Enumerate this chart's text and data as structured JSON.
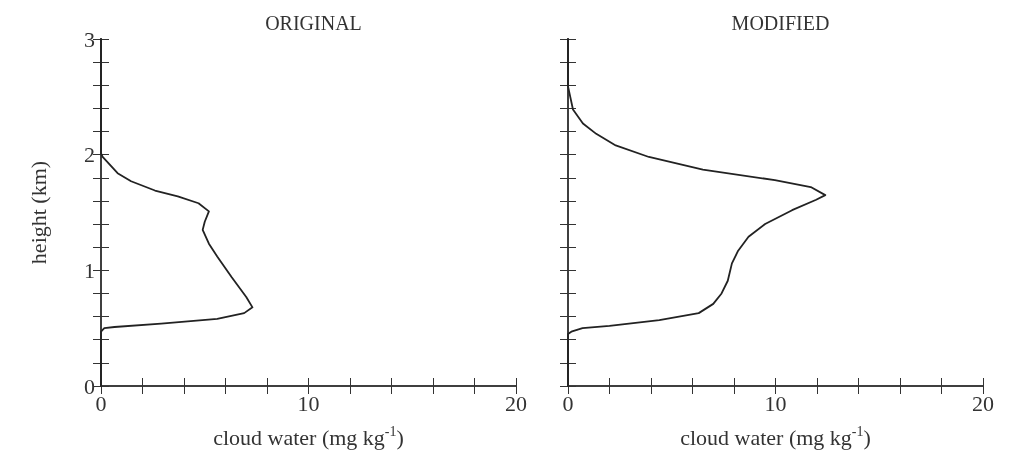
{
  "chart_data": [
    {
      "type": "line",
      "title": "ORIGINAL",
      "xlabel": "cloud water (mg kg$^{-1}$)",
      "ylabel": "height (km)",
      "grid": false,
      "marker": "none",
      "line_style": "solid",
      "xlim": [
        0,
        20
      ],
      "xticks": [
        0,
        {
          "value": 2,
          "label": null
        },
        {
          "value": 4,
          "label": null
        },
        {
          "value": 6,
          "label": null
        },
        {
          "value": 8,
          "label": null
        },
        10,
        {
          "value": 12,
          "label": null
        },
        {
          "value": 14,
          "label": null
        },
        {
          "value": 16,
          "label": null
        },
        {
          "value": 18,
          "label": null
        },
        20
      ],
      "ylim": [
        0,
        3
      ],
      "yticks": [
        0,
        {
          "value": 0.2,
          "label": null
        },
        {
          "value": 0.4,
          "label": null
        },
        {
          "value": 0.6,
          "label": null
        },
        {
          "value": 0.8,
          "label": null
        },
        1,
        {
          "value": 1.2,
          "label": null
        },
        {
          "value": 1.4,
          "label": null
        },
        {
          "value": 1.6,
          "label": null
        },
        {
          "value": 1.8,
          "label": null
        },
        2,
        {
          "value": 2.2,
          "label": null
        },
        {
          "value": 2.4,
          "label": null
        },
        {
          "value": 2.6,
          "label": null
        },
        {
          "value": 2.8,
          "label": null
        },
        3
      ],
      "series": [
        {
          "color": "#222222",
          "x": [
            0,
            0,
            0.08,
            0.8,
            1.45,
            2.6,
            3.7,
            4.7,
            5.2,
            5.0,
            4.9,
            5.2,
            5.6,
            6.3,
            7.0,
            7.3,
            6.9,
            5.6,
            2.9,
            0.65,
            0.16,
            0,
            0
          ],
          "values": [
            3,
            2.01,
            1.98,
            1.84,
            1.77,
            1.69,
            1.64,
            1.58,
            1.51,
            1.42,
            1.35,
            1.23,
            1.12,
            0.94,
            0.77,
            0.68,
            0.63,
            0.58,
            0.54,
            0.51,
            0.5,
            0.47,
            0
          ]
        }
      ]
    },
    {
      "type": "line",
      "title": "MODIFIED",
      "xlabel": "cloud water (mg kg$^{-1}$)",
      "grid": false,
      "marker": "none",
      "line_style": "solid",
      "tick_labels": "x",
      "xlim": [
        0,
        20
      ],
      "xticks": [
        0,
        {
          "value": 2,
          "label": null
        },
        {
          "value": 4,
          "label": null
        },
        {
          "value": 6,
          "label": null
        },
        {
          "value": 8,
          "label": null
        },
        10,
        {
          "value": 12,
          "label": null
        },
        {
          "value": 14,
          "label": null
        },
        {
          "value": 16,
          "label": null
        },
        {
          "value": 18,
          "label": null
        },
        20
      ],
      "ylim": [
        0,
        3
      ],
      "yticks": [
        0,
        {
          "value": 0.2,
          "label": null
        },
        {
          "value": 0.4,
          "label": null
        },
        {
          "value": 0.6,
          "label": null
        },
        {
          "value": 0.8,
          "label": null
        },
        1,
        {
          "value": 1.2,
          "label": null
        },
        {
          "value": 1.4,
          "label": null
        },
        {
          "value": 1.6,
          "label": null
        },
        {
          "value": 1.8,
          "label": null
        },
        2,
        {
          "value": 2.2,
          "label": null
        },
        {
          "value": 2.4,
          "label": null
        },
        {
          "value": 2.6,
          "label": null
        },
        {
          "value": 2.8,
          "label": null
        },
        3
      ],
      "series": [
        {
          "color": "#222222",
          "x": [
            0,
            0,
            0.24,
            0.72,
            1.36,
            2.3,
            3.9,
            6.5,
            9.97,
            11.7,
            12.4,
            11.96,
            10.8,
            9.5,
            8.7,
            8.2,
            7.9,
            7.7,
            7.4,
            7.0,
            6.3,
            4.4,
            2.0,
            0.7,
            0.16,
            0,
            0
          ],
          "values": [
            3,
            2.59,
            2.39,
            2.27,
            2.18,
            2.08,
            1.98,
            1.87,
            1.78,
            1.72,
            1.65,
            1.61,
            1.52,
            1.4,
            1.29,
            1.17,
            1.06,
            0.91,
            0.8,
            0.71,
            0.63,
            0.57,
            0.52,
            0.5,
            0.47,
            0.45,
            0
          ]
        }
      ]
    }
  ]
}
